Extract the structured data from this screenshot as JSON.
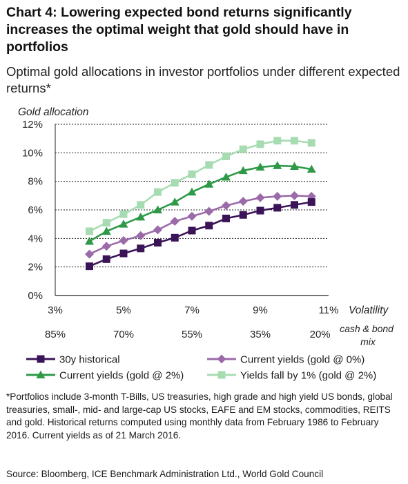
{
  "title": "Chart 4: Lowering expected bond returns significantly increases the optimal weight that gold should have in portfolios",
  "subtitle": "Optimal gold allocations in investor portfolios under different expected returns*",
  "footnote": "*Portfolios include 3-month T-Bills, US treasuries, high grade and high yield US bonds, global treasuries, small-, mid- and large-cap US stocks, EAFE and EM stocks, commodities, REITS and gold. Historical returns computed using monthly data from February 1986 to February 2016. Current yields as of 21 March 2016.",
  "source": "Source: Bloomberg, ICE Benchmark Administration Ltd., World Gold Council",
  "colors": {
    "hist": "#3b1458",
    "gold0": "#9b6aa8",
    "gold2": "#2e9a48",
    "fall": "#a7dcb2"
  },
  "chart_data": {
    "type": "line",
    "title": "Chart 4: Lowering expected bond returns significantly increases the optimal weight that gold should have in portfolios",
    "subtitle": "Optimal gold allocations in investor portfolios under different expected returns*",
    "ylabel": "Gold allocation",
    "xlabel": "Volatility",
    "x2label": "cash & bond mix",
    "ylim": [
      0,
      12
    ],
    "xlim": [
      3,
      11
    ],
    "y_ticks": [
      "0%",
      "2%",
      "4%",
      "6%",
      "8%",
      "10%",
      "12%"
    ],
    "x_ticks": [
      {
        "value": 3,
        "label": "3%"
      },
      {
        "value": 5,
        "label": "5%"
      },
      {
        "value": 7,
        "label": "7%"
      },
      {
        "value": 9,
        "label": "9%"
      },
      {
        "value": 11,
        "label": "11%"
      }
    ],
    "x2_ticks": [
      {
        "value": 3,
        "label": "85%"
      },
      {
        "value": 5,
        "label": "70%"
      },
      {
        "value": 7,
        "label": "55%"
      },
      {
        "value": 9,
        "label": "35%"
      },
      {
        "value": 10.75,
        "label": "20%"
      }
    ],
    "grid": "horizontal dashed",
    "legend_position": "bottom",
    "series": [
      {
        "name": "30y historical",
        "color": "#3b1458",
        "marker": "square",
        "x": [
          4,
          4.5,
          5,
          5.5,
          6,
          6.5,
          7,
          7.5,
          8,
          8.5,
          9,
          9.5,
          10,
          10.5
        ],
        "values": [
          2.05,
          2.55,
          2.95,
          3.3,
          3.7,
          4.05,
          4.55,
          4.9,
          5.4,
          5.65,
          5.95,
          6.15,
          6.35,
          6.55
        ]
      },
      {
        "name": "Current yields (gold @ 0%)",
        "color": "#9b6aa8",
        "marker": "diamond",
        "x": [
          4,
          4.5,
          5,
          5.5,
          6,
          6.5,
          7,
          7.5,
          8,
          8.5,
          9,
          9.5,
          10,
          10.5
        ],
        "values": [
          2.9,
          3.45,
          3.85,
          4.2,
          4.6,
          5.2,
          5.55,
          5.9,
          6.3,
          6.6,
          6.85,
          6.95,
          7.0,
          6.95
        ]
      },
      {
        "name": "Current yields (gold @ 2%)",
        "color": "#2e9a48",
        "marker": "triangle",
        "x": [
          4,
          4.5,
          5,
          5.5,
          6,
          6.5,
          7,
          7.5,
          8,
          8.5,
          9,
          9.5,
          10,
          10.5
        ],
        "values": [
          3.8,
          4.5,
          5.0,
          5.5,
          6.0,
          6.55,
          7.25,
          7.8,
          8.3,
          8.75,
          9.0,
          9.1,
          9.05,
          8.85
        ]
      },
      {
        "name": "Yields fall by 1% (gold @ 2%)",
        "color": "#a7dcb2",
        "marker": "square",
        "x": [
          4,
          4.5,
          5,
          5.5,
          6,
          6.5,
          7,
          7.5,
          8,
          8.5,
          9,
          9.5,
          10,
          10.5
        ],
        "values": [
          4.5,
          5.1,
          5.7,
          6.35,
          7.25,
          7.9,
          8.5,
          9.15,
          9.75,
          10.25,
          10.6,
          10.85,
          10.85,
          10.7
        ]
      }
    ]
  }
}
